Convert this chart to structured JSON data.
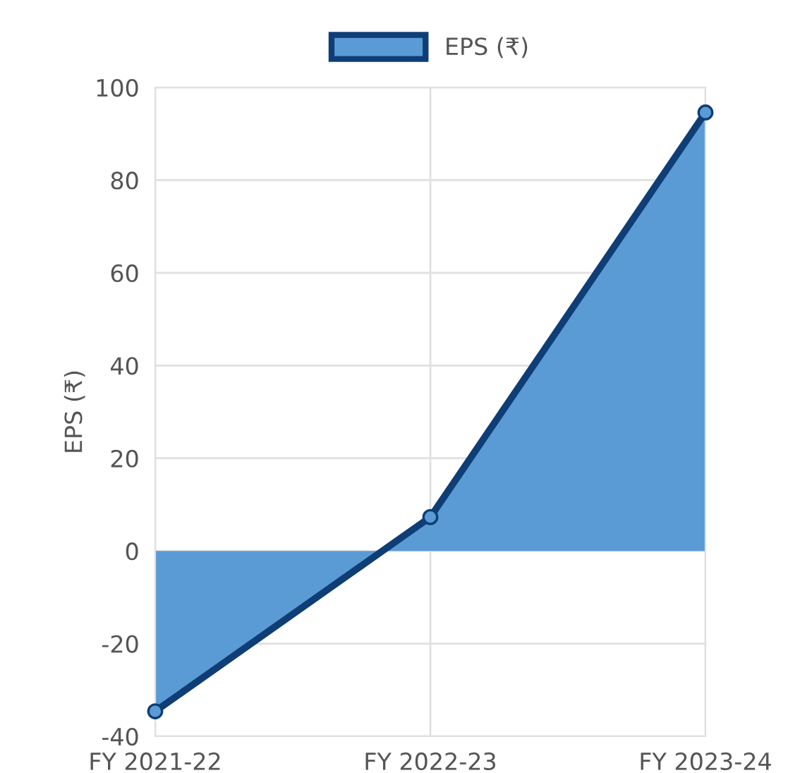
{
  "chart_data": {
    "type": "area",
    "ylabel": "EPS (₹)",
    "categories": [
      "FY 2021-22",
      "FY 2022-23",
      "FY 2023-24"
    ],
    "series": [
      {
        "name": "EPS (₹)",
        "color": "#5b9bd5",
        "values": [
          -34.6,
          7.3,
          94.6
        ]
      }
    ],
    "ylim": [
      -40,
      100
    ],
    "yticks": [
      -40,
      -20,
      0,
      20,
      40,
      60,
      80,
      100
    ],
    "grid": true,
    "legend": "top",
    "marker": "circle"
  }
}
